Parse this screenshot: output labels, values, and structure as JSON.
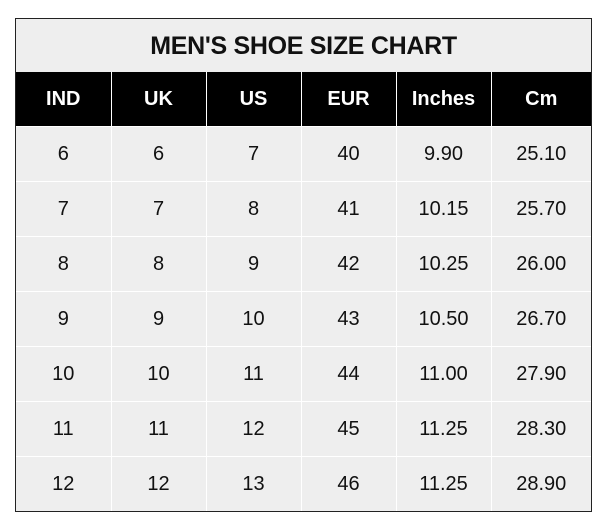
{
  "chart_data": {
    "type": "table",
    "title": "MEN'S SHOE SIZE CHART",
    "columns": [
      "IND",
      "UK",
      "US",
      "EUR",
      "Inches",
      "Cm"
    ],
    "rows": [
      [
        "6",
        "6",
        "7",
        "40",
        "9.90",
        "25.10"
      ],
      [
        "7",
        "7",
        "8",
        "41",
        "10.15",
        "25.70"
      ],
      [
        "8",
        "8",
        "9",
        "42",
        "10.25",
        "26.00"
      ],
      [
        "9",
        "9",
        "10",
        "43",
        "10.50",
        "26.70"
      ],
      [
        "10",
        "10",
        "11",
        "44",
        "11.00",
        "27.90"
      ],
      [
        "11",
        "11",
        "12",
        "45",
        "11.25",
        "28.30"
      ],
      [
        "12",
        "12",
        "13",
        "46",
        "11.25",
        "28.90"
      ]
    ]
  },
  "colors": {
    "header_bg": "#000000",
    "header_text": "#ffffff",
    "body_bg": "#eeeeee"
  }
}
